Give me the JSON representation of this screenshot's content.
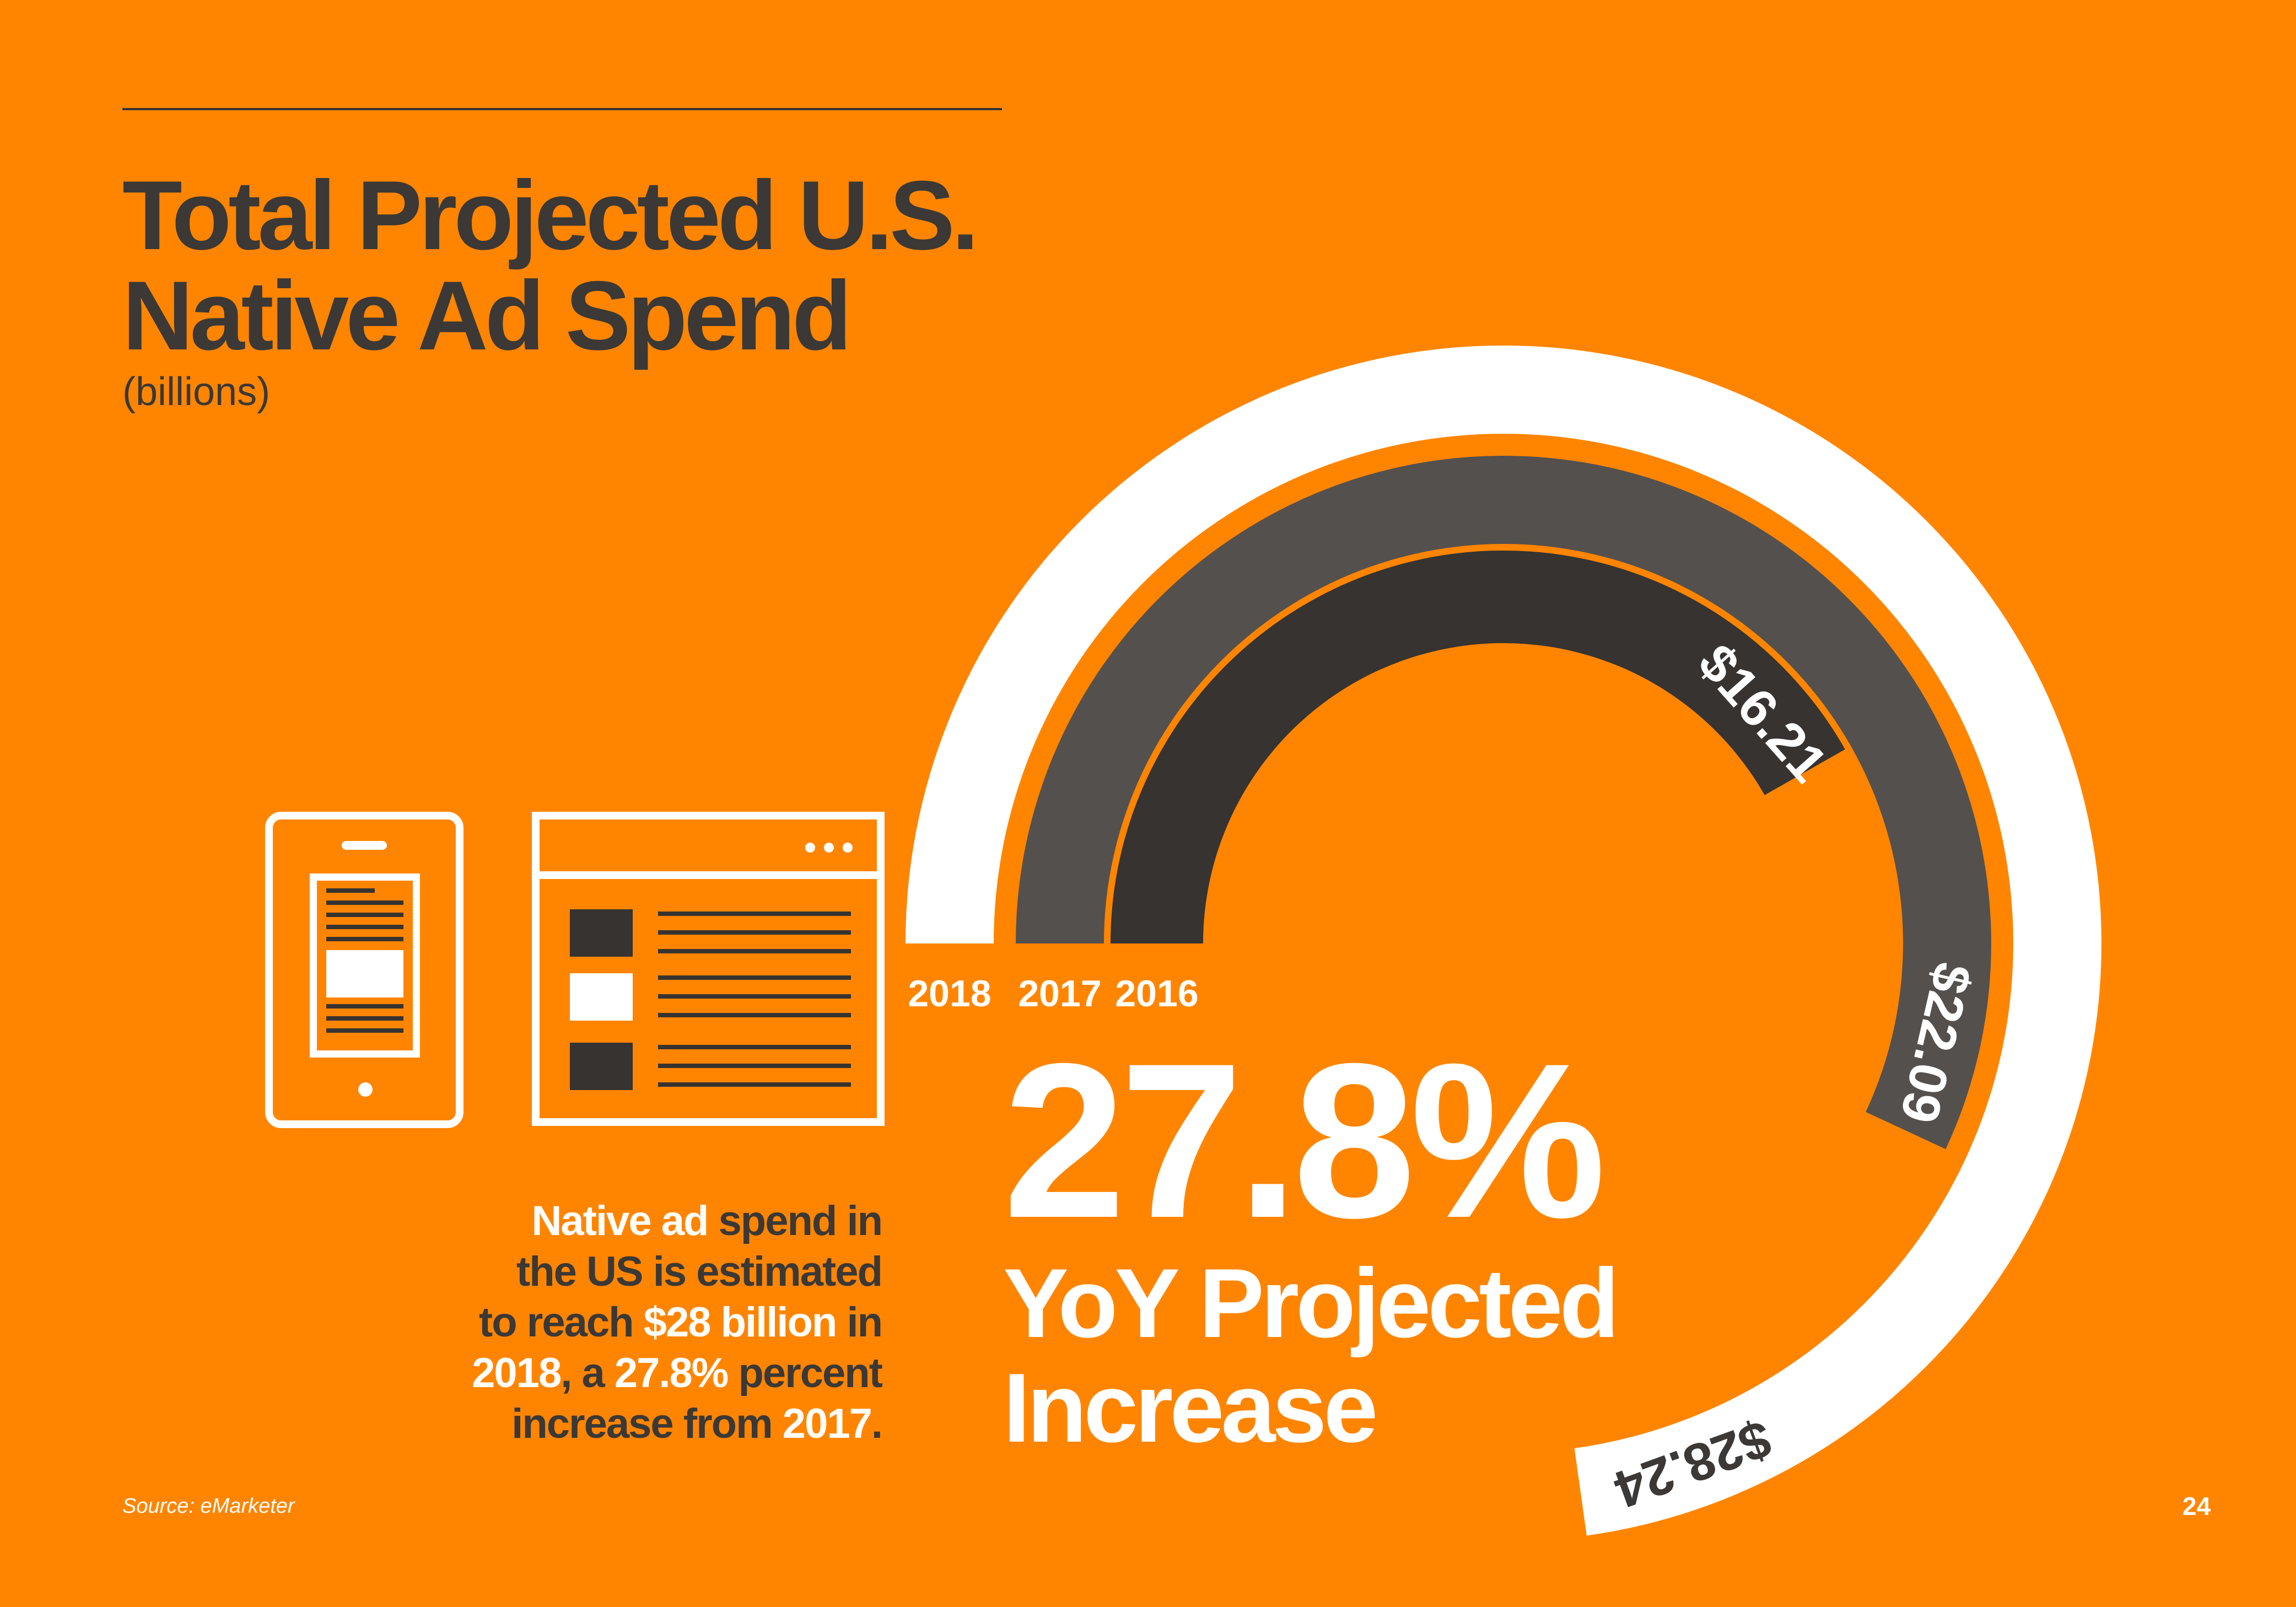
{
  "title_line1": "Total Projected U.S.",
  "title_line2": "Native Ad Spend",
  "subtitle": "(billions)",
  "body_text": [
    [
      {
        "t": "Native ad ",
        "hl": true
      },
      {
        "t": "spend in",
        "hl": false
      }
    ],
    [
      {
        "t": "the US is estimated",
        "hl": false
      }
    ],
    [
      {
        "t": "to reach ",
        "hl": false
      },
      {
        "t": "$28 billion",
        "hl": true
      },
      {
        "t": " in",
        "hl": false
      }
    ],
    [
      {
        "t": "2018",
        "hl": true
      },
      {
        "t": ", a ",
        "hl": false
      },
      {
        "t": "27.8%",
        "hl": true
      },
      {
        "t": " percent",
        "hl": false
      }
    ],
    [
      {
        "t": "increase from ",
        "hl": false
      },
      {
        "t": "2017",
        "hl": true
      },
      {
        "t": ".",
        "hl": false
      }
    ]
  ],
  "highlight": {
    "value": "27.8%",
    "caption_line1": "YoY Projected",
    "caption_line2": "Increase"
  },
  "source": "Source: eMarketer",
  "page_number": "24",
  "colors": {
    "background": "#FF8500",
    "ring_2018": "#FFFFFF",
    "ring_2017": "#54504E",
    "ring_2016": "#363331",
    "text_dark": "#3B3836",
    "text_light": "#FFFFFF"
  },
  "icons": [
    "phone-icon",
    "browser-window-icon"
  ],
  "chart_data": {
    "type": "radial-bar",
    "title": "Total Projected U.S. Native Ad Spend",
    "subtitle": "(billions)",
    "unit": "billions USD",
    "series": [
      {
        "year": "2018",
        "value": 28.24,
        "label": "$28.24"
      },
      {
        "year": "2017",
        "value": 22.09,
        "label": "$22.09"
      },
      {
        "year": "2016",
        "value": 16.21,
        "label": "$16.21"
      }
    ],
    "yoy_increase": "27.8%"
  }
}
